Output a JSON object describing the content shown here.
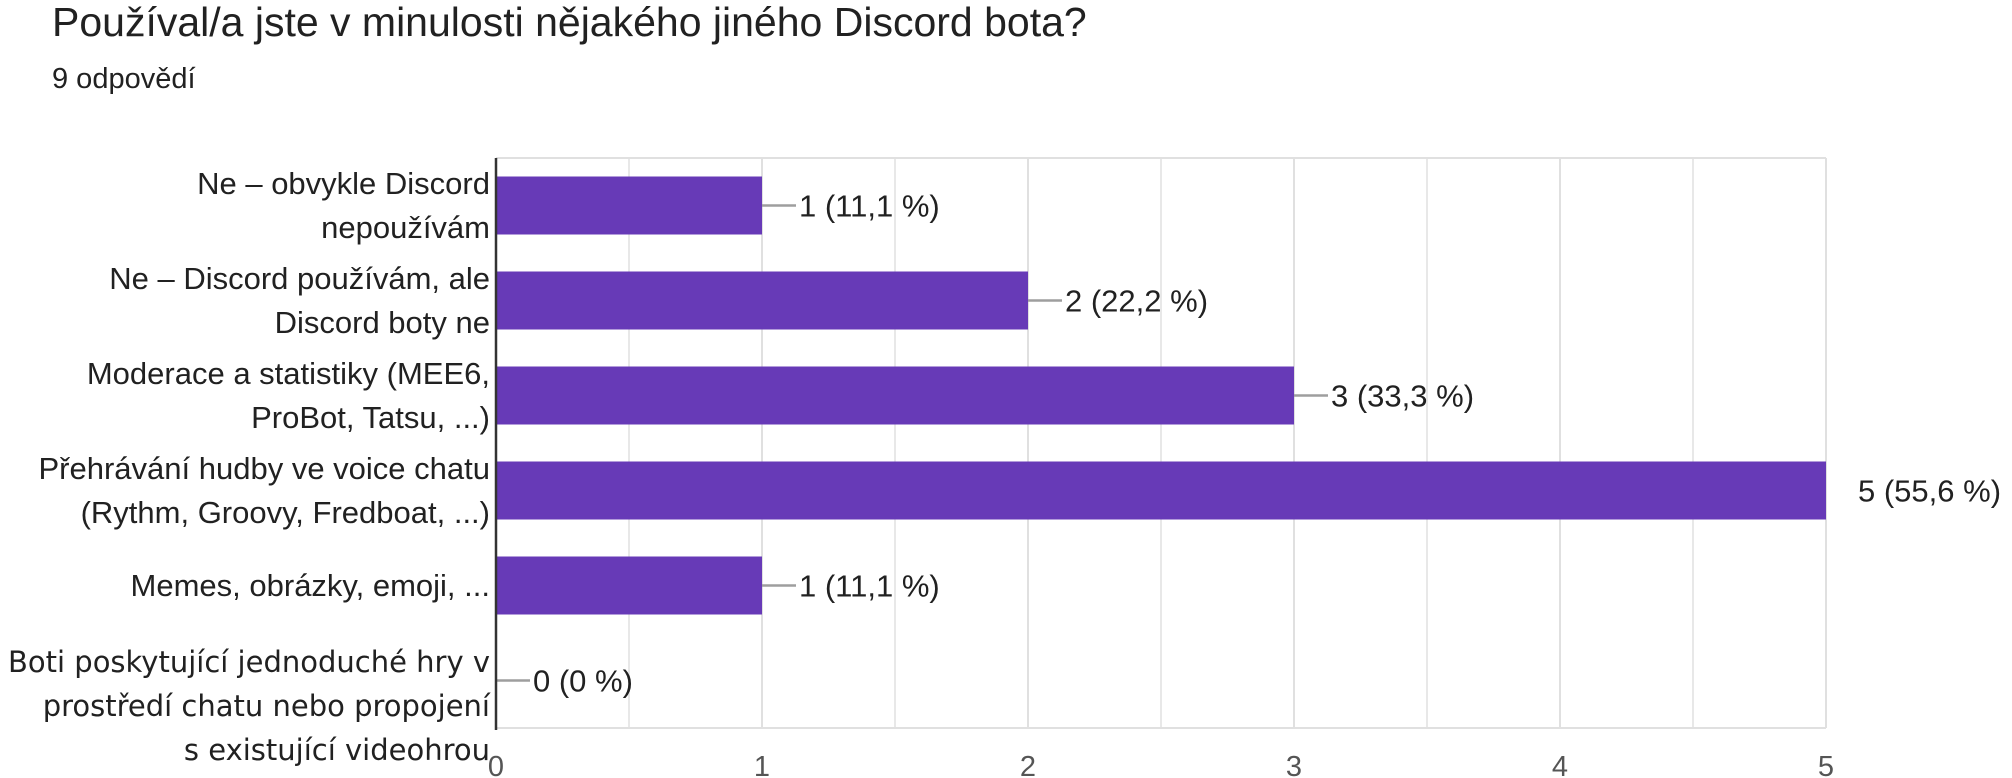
{
  "header": {
    "title": "Používal/a jste v minulosti nějakého jiného Discord bota?",
    "subtitle": "9 odpovědí"
  },
  "colors": {
    "bar": "#673ab7",
    "grid": "#e0e0e0",
    "axis": "#333333",
    "leader": "#9e9e9e",
    "text": "#212121"
  },
  "chart_data": {
    "type": "bar",
    "orientation": "horizontal",
    "categories": [
      [
        "Ne – obvykle Discord",
        "nepoužívám"
      ],
      [
        "Ne – Discord používám, ale",
        "Discord boty ne"
      ],
      [
        "Moderace a statistiky (MEE6,",
        "ProBot, Tatsu, ...)"
      ],
      [
        "Přehrávání hudby ve voice chatu",
        "(Rythm, Groovy, Fredboat, ...)"
      ],
      [
        "Memes, obrázky, emoji, ..."
      ],
      [
        "Boti poskytující jednoduché hry v",
        "prostředí chatu nebo propojení",
        "s existující videohrou"
      ]
    ],
    "values": [
      1,
      2,
      3,
      5,
      1,
      0
    ],
    "data_labels": [
      "1 (11,1 %)",
      "2 (22,2 %)",
      "3 (33,3 %)",
      "5 (55,6 %)",
      "1 (11,1 %)",
      "0 (0 %)"
    ],
    "xlim": [
      0,
      5
    ],
    "xticks": [
      "0",
      "1",
      "2",
      "3",
      "4",
      "5"
    ],
    "minor_gridlines": true,
    "legend": "none"
  }
}
